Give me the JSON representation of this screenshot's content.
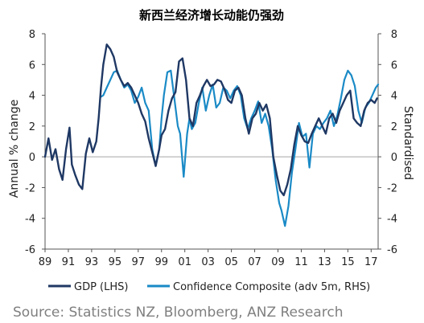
{
  "chart_data": {
    "type": "line",
    "title": "新西兰经济增长动能仍强劲",
    "ylabel_left": "Annual % change",
    "ylabel_right": "Standardised",
    "x_ticks": [
      "89",
      "91",
      "93",
      "95",
      "97",
      "99",
      "01",
      "03",
      "05",
      "07",
      "09",
      "11",
      "13",
      "15",
      "17"
    ],
    "x_range": [
      1989,
      2017.6
    ],
    "y_ticks": [
      "-6",
      "-4",
      "-2",
      "0",
      "2",
      "4",
      "6",
      "8"
    ],
    "y_ticks_right": [
      "-6",
      "-4",
      "-2",
      "0",
      "2",
      "4",
      "6",
      "8"
    ],
    "ylim": [
      -6,
      8
    ],
    "grid": false,
    "legend_position": "bottom",
    "source": "Source: Statistics NZ, Bloomberg, ANZ Research",
    "series": [
      {
        "name": "GDP (LHS)",
        "color": "#1f3864",
        "axis": "left",
        "x": [
          1989.0,
          1989.3,
          1989.6,
          1989.9,
          1990.2,
          1990.5,
          1990.8,
          1991.1,
          1991.3,
          1991.6,
          1991.9,
          1992.2,
          1992.5,
          1992.8,
          1993.1,
          1993.4,
          1993.6,
          1993.8,
          1994.0,
          1994.3,
          1994.6,
          1994.9,
          1995.2,
          1995.5,
          1995.8,
          1996.1,
          1996.4,
          1996.7,
          1997.0,
          1997.3,
          1997.6,
          1997.9,
          1998.2,
          1998.5,
          1998.8,
          1999.0,
          1999.3,
          1999.6,
          1999.9,
          2000.2,
          2000.5,
          2000.8,
          2001.1,
          2001.4,
          2001.7,
          2002.0,
          2002.3,
          2002.6,
          2002.9,
          2003.2,
          2003.5,
          2003.8,
          2004.1,
          2004.4,
          2004.7,
          2005.0,
          2005.3,
          2005.6,
          2005.9,
          2006.2,
          2006.5,
          2006.8,
          2007.1,
          2007.4,
          2007.7,
          2008.0,
          2008.3,
          2008.6,
          2008.9,
          2009.2,
          2009.5,
          2009.8,
          2010.1,
          2010.4,
          2010.7,
          2011.0,
          2011.3,
          2011.6,
          2011.9,
          2012.2,
          2012.5,
          2012.8,
          2013.1,
          2013.4,
          2013.7,
          2014.0,
          2014.3,
          2014.6,
          2014.9,
          2015.2,
          2015.5,
          2015.8,
          2016.1,
          2016.4,
          2016.7,
          2017.0,
          2017.3,
          2017.5
        ],
        "values": [
          0.0,
          1.2,
          -0.2,
          0.5,
          -0.8,
          -1.5,
          0.5,
          1.9,
          -0.5,
          -1.2,
          -1.8,
          -2.1,
          0.2,
          1.2,
          0.3,
          1.0,
          2.5,
          4.5,
          6.0,
          7.3,
          7.0,
          6.5,
          5.5,
          5.0,
          4.6,
          4.8,
          4.5,
          4.0,
          3.5,
          2.8,
          2.3,
          1.2,
          0.3,
          -0.6,
          0.5,
          1.4,
          1.8,
          3.0,
          3.8,
          4.2,
          6.2,
          6.4,
          5.0,
          2.5,
          2.0,
          3.5,
          4.0,
          4.6,
          5.0,
          4.6,
          4.7,
          5.0,
          4.9,
          4.4,
          3.7,
          3.5,
          4.3,
          4.5,
          4.0,
          2.5,
          1.5,
          2.5,
          2.8,
          3.5,
          3.0,
          3.4,
          2.5,
          0.0,
          -1.2,
          -2.2,
          -2.5,
          -1.8,
          -0.8,
          0.8,
          2.0,
          1.4,
          1.0,
          0.9,
          1.5,
          2.0,
          2.5,
          2.0,
          1.5,
          2.5,
          2.8,
          2.2,
          3.0,
          3.5,
          4.0,
          4.3,
          2.5,
          2.2,
          2.0,
          3.0,
          3.5,
          3.7,
          3.5,
          3.8
        ]
      },
      {
        "name": "Confidence Composite (adv 5m, RHS)",
        "color": "#1a8ac6",
        "axis": "right",
        "x": [
          1993.8,
          1994.0,
          1994.3,
          1994.6,
          1994.9,
          1995.2,
          1995.5,
          1995.8,
          1996.1,
          1996.4,
          1996.7,
          1997.0,
          1997.3,
          1997.6,
          1997.9,
          1998.2,
          1998.5,
          1998.8,
          1999.0,
          1999.2,
          1999.5,
          1999.8,
          2000.1,
          2000.4,
          2000.6,
          2000.9,
          2001.2,
          2001.4,
          2001.6,
          2001.9,
          2002.2,
          2002.5,
          2002.8,
          2003.1,
          2003.4,
          2003.7,
          2004.0,
          2004.3,
          2004.6,
          2004.9,
          2005.2,
          2005.5,
          2005.8,
          2006.1,
          2006.4,
          2006.7,
          2007.0,
          2007.3,
          2007.6,
          2007.9,
          2008.2,
          2008.5,
          2008.8,
          2009.1,
          2009.3,
          2009.6,
          2009.9,
          2010.2,
          2010.5,
          2010.8,
          2011.1,
          2011.4,
          2011.7,
          2012.0,
          2012.3,
          2012.6,
          2012.9,
          2013.2,
          2013.5,
          2013.8,
          2014.1,
          2014.4,
          2014.7,
          2015.0,
          2015.3,
          2015.6,
          2015.9,
          2016.2,
          2016.5,
          2016.8,
          2017.1,
          2017.4,
          2017.6
        ],
        "values": [
          3.9,
          4.0,
          4.5,
          5.0,
          5.5,
          5.6,
          5.0,
          4.5,
          4.7,
          4.3,
          3.5,
          3.9,
          4.5,
          3.5,
          3.0,
          0.5,
          -0.6,
          0.5,
          2.5,
          4.0,
          5.5,
          5.6,
          3.8,
          2.0,
          1.5,
          -1.3,
          1.5,
          2.5,
          1.8,
          2.2,
          3.5,
          4.5,
          3.0,
          4.0,
          4.7,
          3.2,
          3.5,
          4.5,
          4.3,
          3.8,
          4.3,
          4.6,
          4.0,
          2.5,
          1.8,
          2.5,
          3.0,
          3.6,
          2.2,
          2.8,
          2.0,
          0.5,
          -1.5,
          -3.0,
          -3.5,
          -4.5,
          -3.2,
          -1.0,
          0.5,
          2.2,
          1.3,
          1.5,
          -0.7,
          1.5,
          2.0,
          1.8,
          2.2,
          2.5,
          3.0,
          2.0,
          2.7,
          3.8,
          5.0,
          5.6,
          5.3,
          4.6,
          3.0,
          2.2,
          3.2,
          3.5,
          4.0,
          4.5,
          4.7
        ]
      }
    ]
  }
}
